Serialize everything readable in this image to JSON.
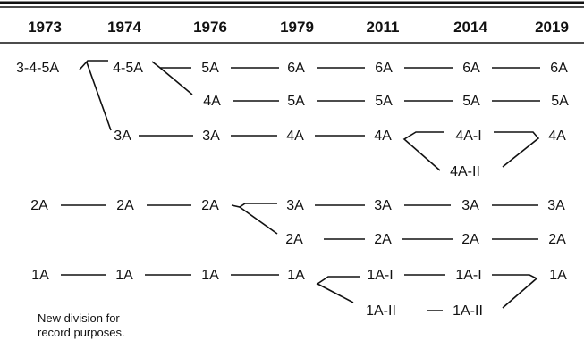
{
  "years": [
    "1973",
    "1974",
    "1976",
    "1979",
    "2011",
    "2014",
    "2019"
  ],
  "nodes": {
    "c1973_345a": "3-4-5A",
    "c1974_45a": "4-5A",
    "c1974_3a": "3A",
    "c1976_5a": "5A",
    "c1976_4a": "4A",
    "c1976_3a": "3A",
    "c1979_6a": "6A",
    "c1979_5a": "5A",
    "c1979_4a": "4A",
    "c2011_6a": "6A",
    "c2011_5a": "5A",
    "c2011_4a": "4A",
    "c2014_6a": "6A",
    "c2014_5a": "5A",
    "c2014_4ai": "4A-I",
    "c2014_4aii": "4A-II",
    "c2019_6a": "6A",
    "c2019_5a": "5A",
    "c2019_4a": "4A",
    "c1973_2a": "2A",
    "c1974_2a": "2A",
    "c1976_2a": "2A",
    "c1979_3a": "3A",
    "c1979_2a": "2A",
    "c2011_3a": "3A",
    "c2011_2a": "2A",
    "c2014_3a": "3A",
    "c2014_2a": "2A",
    "c2019_3a": "3A",
    "c2019_2a": "2A",
    "c1973_1a": "1A",
    "c1974_1a": "1A",
    "c1976_1a": "1A",
    "c1979_1a": "1A",
    "c2011_1ai": "1A-I",
    "c2011_1aii": "1A-II",
    "c2014_1ai": "1A-I",
    "c2014_1aii": "1A-II",
    "c2019_1a": "1A"
  },
  "note": {
    "line1": "New division for",
    "line2": "record purposes."
  }
}
